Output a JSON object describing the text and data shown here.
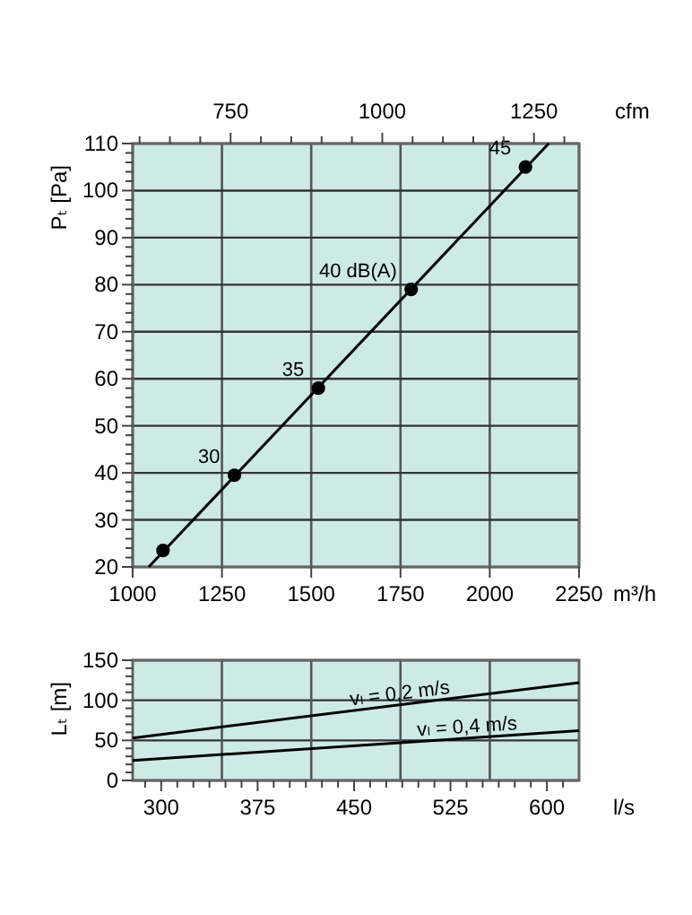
{
  "chart_data": [
    {
      "type": "scatter",
      "xlabel": "m³/h",
      "ylabel": "Pₜ [Pa]",
      "x2label": "cfm",
      "xlim": [
        1000,
        2250
      ],
      "xticks": [
        1000,
        1250,
        1500,
        1750,
        2000,
        2250
      ],
      "x2lim": [
        588.6,
        1324.3
      ],
      "x2ticks": [
        {
          "value": 600,
          "label": null
        },
        {
          "value": 650,
          "label": null
        },
        {
          "value": 700,
          "label": null
        },
        750,
        {
          "value": 800,
          "label": null
        },
        {
          "value": 850,
          "label": null
        },
        {
          "value": 900,
          "label": null
        },
        {
          "value": 950,
          "label": null
        },
        1000,
        {
          "value": 1050,
          "label": null
        },
        {
          "value": 1100,
          "label": null
        },
        {
          "value": 1150,
          "label": null
        },
        {
          "value": 1200,
          "label": null
        },
        1250,
        {
          "value": 1300,
          "label": null
        }
      ],
      "ylim": [
        20,
        110
      ],
      "yticks": [
        20,
        {
          "value": 22,
          "label": null
        },
        {
          "value": 24,
          "label": null
        },
        {
          "value": 26,
          "label": null
        },
        {
          "value": 28,
          "label": null
        },
        30,
        {
          "value": 32,
          "label": null
        },
        {
          "value": 34,
          "label": null
        },
        {
          "value": 36,
          "label": null
        },
        {
          "value": 38,
          "label": null
        },
        40,
        {
          "value": 42,
          "label": null
        },
        {
          "value": 44,
          "label": null
        },
        {
          "value": 46,
          "label": null
        },
        {
          "value": 48,
          "label": null
        },
        50,
        {
          "value": 52,
          "label": null
        },
        {
          "value": 54,
          "label": null
        },
        {
          "value": 56,
          "label": null
        },
        {
          "value": 58,
          "label": null
        },
        60,
        {
          "value": 62,
          "label": null
        },
        {
          "value": 64,
          "label": null
        },
        {
          "value": 66,
          "label": null
        },
        {
          "value": 68,
          "label": null
        },
        70,
        {
          "value": 72,
          "label": null
        },
        {
          "value": 74,
          "label": null
        },
        {
          "value": 76,
          "label": null
        },
        {
          "value": 78,
          "label": null
        },
        80,
        {
          "value": 82,
          "label": null
        },
        {
          "value": 84,
          "label": null
        },
        {
          "value": 86,
          "label": null
        },
        {
          "value": 88,
          "label": null
        },
        90,
        {
          "value": 92,
          "label": null
        },
        {
          "value": 94,
          "label": null
        },
        {
          "value": 96,
          "label": null
        },
        {
          "value": 98,
          "label": null
        },
        100,
        {
          "value": 102,
          "label": null
        },
        {
          "value": 104,
          "label": null
        },
        {
          "value": 106,
          "label": null
        },
        {
          "value": 108,
          "label": null
        },
        110
      ],
      "grid": true,
      "marker": "circle",
      "series": [
        {
          "type": "line",
          "color": "#000000",
          "x": [
            1045,
            2165
          ],
          "values": [
            20,
            110
          ],
          "marker": "none"
        },
        {
          "color": "#000000",
          "x": [
            1085,
            1285,
            1520,
            1780,
            2100
          ],
          "values": [
            23.5,
            39.5,
            58,
            79,
            105
          ]
        }
      ],
      "annotations": [
        {
          "text": "30",
          "x": 1285,
          "y": 39.5
        },
        {
          "text": "35",
          "x": 1520,
          "y": 58
        },
        {
          "text": "40 dB(A)",
          "x": 1780,
          "y": 79
        },
        {
          "text": "45",
          "x": 2100,
          "y": 105
        }
      ]
    },
    {
      "type": "line",
      "xlabel": "l/s",
      "ylabel": "Lₜ [m]",
      "xlim": [
        277.8,
        625
      ],
      "xticks": [
        {
          "value": 287.5,
          "label": null
        },
        300,
        {
          "value": 312.5,
          "label": null
        },
        {
          "value": 325,
          "label": null
        },
        {
          "value": 337.5,
          "label": null
        },
        {
          "value": 350,
          "label": null
        },
        {
          "value": 362.5,
          "label": null
        },
        375,
        {
          "value": 387.5,
          "label": null
        },
        {
          "value": 400,
          "label": null
        },
        {
          "value": 412.5,
          "label": null
        },
        {
          "value": 425,
          "label": null
        },
        {
          "value": 437.5,
          "label": null
        },
        450,
        {
          "value": 462.5,
          "label": null
        },
        {
          "value": 475,
          "label": null
        },
        {
          "value": 487.5,
          "label": null
        },
        {
          "value": 500,
          "label": null
        },
        {
          "value": 512.5,
          "label": null
        },
        525,
        {
          "value": 537.5,
          "label": null
        },
        {
          "value": 550,
          "label": null
        },
        {
          "value": 562.5,
          "label": null
        },
        {
          "value": 575,
          "label": null
        },
        {
          "value": 587.5,
          "label": null
        },
        600,
        {
          "value": 612.5,
          "label": null
        }
      ],
      "ylim": [
        0,
        150
      ],
      "yticks": [
        0,
        {
          "value": 10,
          "label": null
        },
        {
          "value": 20,
          "label": null
        },
        {
          "value": 30,
          "label": null
        },
        {
          "value": 40,
          "label": null
        },
        50,
        {
          "value": 60,
          "label": null
        },
        {
          "value": 70,
          "label": null
        },
        {
          "value": 80,
          "label": null
        },
        {
          "value": 90,
          "label": null
        },
        100,
        {
          "value": 110,
          "label": null
        },
        {
          "value": 120,
          "label": null
        },
        {
          "value": 130,
          "label": null
        },
        {
          "value": 140,
          "label": null
        },
        150
      ],
      "grid": "y",
      "marker": "none",
      "ref_lines": [
        {
          "axis": "x",
          "value": 347.2,
          "color": "#555555"
        },
        {
          "axis": "x",
          "value": 416.7,
          "color": "#555555"
        },
        {
          "axis": "x",
          "value": 486.1,
          "color": "#555555"
        },
        {
          "axis": "x",
          "value": 555.6,
          "color": "#555555"
        }
      ],
      "series": [
        {
          "name": "vₗ = 0,2 m/s",
          "color": "#000000",
          "x": [
            277.8,
            625
          ],
          "values": [
            53,
            122
          ]
        },
        {
          "name": "vₗ = 0,4 m/s",
          "color": "#000000",
          "x": [
            277.8,
            625
          ],
          "values": [
            25,
            62
          ]
        }
      ]
    }
  ]
}
